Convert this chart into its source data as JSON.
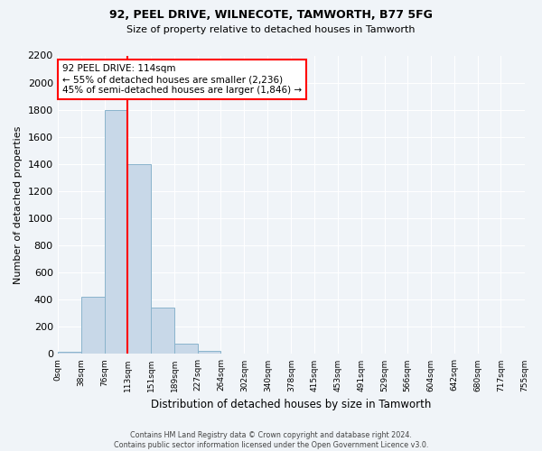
{
  "title1": "92, PEEL DRIVE, WILNECOTE, TAMWORTH, B77 5FG",
  "title2": "Size of property relative to detached houses in Tamworth",
  "xlabel": "Distribution of detached houses by size in Tamworth",
  "ylabel": "Number of detached properties",
  "bin_labels": [
    "0sqm",
    "38sqm",
    "76sqm",
    "113sqm",
    "151sqm",
    "189sqm",
    "227sqm",
    "264sqm",
    "302sqm",
    "340sqm",
    "378sqm",
    "415sqm",
    "453sqm",
    "491sqm",
    "529sqm",
    "566sqm",
    "604sqm",
    "642sqm",
    "680sqm",
    "717sqm",
    "755sqm"
  ],
  "bar_heights": [
    15,
    425,
    1800,
    1400,
    345,
    75,
    20,
    0,
    0,
    0,
    0,
    0,
    0,
    0,
    0,
    0,
    0,
    0,
    0,
    0
  ],
  "bar_color": "#c8d8e8",
  "bar_edgecolor": "#8ab4cc",
  "vline_x": 113,
  "vline_color": "red",
  "annotation_title": "92 PEEL DRIVE: 114sqm",
  "annotation_line1": "← 55% of detached houses are smaller (2,236)",
  "annotation_line2": "45% of semi-detached houses are larger (1,846) →",
  "annotation_box_color": "white",
  "annotation_box_edgecolor": "red",
  "ylim": [
    0,
    2200
  ],
  "yticks": [
    0,
    200,
    400,
    600,
    800,
    1000,
    1200,
    1400,
    1600,
    1800,
    2000,
    2200
  ],
  "bin_edges": [
    0,
    38,
    76,
    113,
    151,
    189,
    227,
    264,
    302,
    340,
    378,
    415,
    453,
    491,
    529,
    566,
    604,
    642,
    680,
    717,
    755
  ],
  "footer1": "Contains HM Land Registry data © Crown copyright and database right 2024.",
  "footer2": "Contains public sector information licensed under the Open Government Licence v3.0.",
  "bg_color": "#f0f4f8"
}
